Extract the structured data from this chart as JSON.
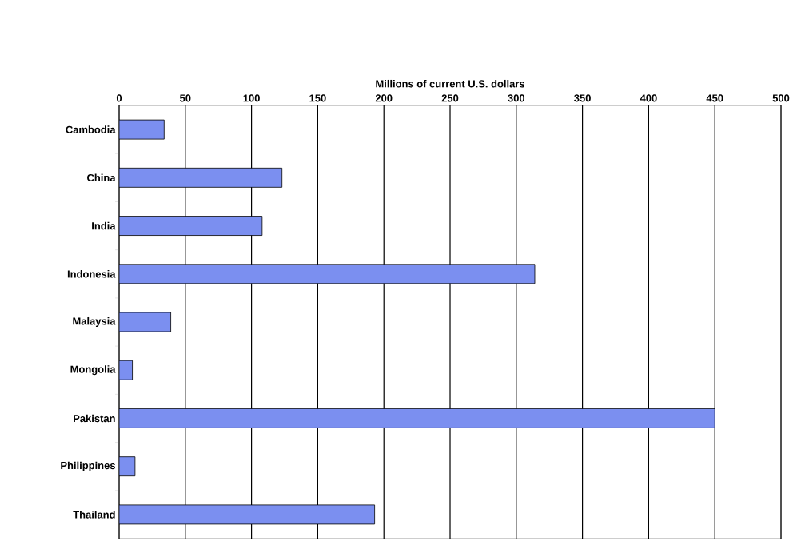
{
  "chart_data": {
    "type": "bar",
    "orientation": "horizontal",
    "xlabel": "Millions of current U.S. dollars",
    "categories": [
      "Cambodia",
      "China",
      "India",
      "Indonesia",
      "Malaysia",
      "Mongolia",
      "Pakistan",
      "Philippines",
      "Thailand"
    ],
    "values": [
      34,
      123,
      108,
      314,
      39,
      10,
      450,
      12,
      193
    ],
    "color": "#7b8ff0",
    "xlim": [
      0,
      500
    ],
    "xticks": [
      0,
      50,
      100,
      150,
      200,
      250,
      300,
      350,
      400,
      450,
      500
    ],
    "grid": "x"
  }
}
